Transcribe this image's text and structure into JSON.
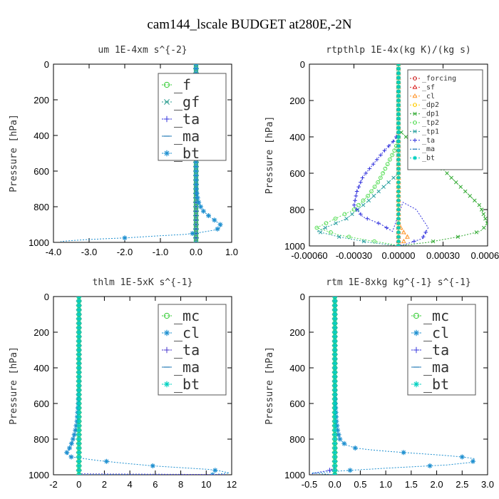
{
  "figure_title": "cam144_lscale  BUDGET at280E,-2N",
  "chart_data": [
    {
      "type": "line",
      "title": "um  1E-4xm s^{-2}",
      "ylabel": "Pressure [hPa]",
      "xlim": [
        -4.0,
        1.0
      ],
      "ylim": [
        1000,
        0
      ],
      "xticks": [
        -4.0,
        -3.0,
        -2.0,
        -1.0,
        0.0,
        1.0
      ],
      "xtick_labels": [
        "-4.0",
        "-3.0",
        "-2.0",
        "-1.0",
        "0.0",
        "1.0"
      ],
      "yticks": [
        0,
        200,
        400,
        600,
        800,
        1000
      ],
      "ytick_labels": [
        "0",
        "200",
        "400",
        "600",
        "800",
        "1000"
      ],
      "legend_size": "large",
      "series": [
        {
          "name": "_f",
          "color": "#33cc33",
          "marker": "circle",
          "x": [
            0,
            0
          ],
          "y": [
            0,
            1000
          ]
        },
        {
          "name": "_gf",
          "color": "#2a9d8f",
          "marker": "x",
          "x": [
            0,
            0
          ],
          "y": [
            0,
            1000
          ]
        },
        {
          "name": "_ta",
          "color": "#3333dd",
          "marker": "plus",
          "x": [
            0,
            0,
            0,
            0
          ],
          "y": [
            0,
            600,
            900,
            1000
          ]
        },
        {
          "name": "_ma",
          "color": "#1f77b4",
          "marker": "dash",
          "x": [
            0,
            0
          ],
          "y": [
            0,
            1000
          ]
        },
        {
          "name": "_bt",
          "color": "#1f90d0",
          "marker": "star",
          "x": [
            0,
            0,
            0,
            0.01,
            0.03,
            0.08,
            0.18,
            0.35,
            0.55,
            0.68,
            0.7,
            0.55,
            0.1,
            -0.3,
            -1.2,
            -2.0,
            -2.6,
            -3.1,
            -3.5,
            -3.8
          ],
          "y": [
            0,
            300,
            600,
            700,
            740,
            780,
            820,
            850,
            880,
            900,
            915,
            930,
            945,
            955,
            965,
            975,
            980,
            985,
            990,
            995
          ]
        }
      ]
    },
    {
      "type": "line",
      "title": "rtpthlp  1E-4x(kg K)/(kg s)",
      "ylabel": "Pressure [hPa]",
      "xlim": [
        -0.0006,
        0.0006
      ],
      "ylim": [
        1000,
        0
      ],
      "xticks": [
        -0.0006,
        -0.0003,
        0.0,
        0.0003,
        0.0006
      ],
      "xtick_labels": [
        "-0.00060",
        "-0.00030",
        "0.00000",
        "0.00030",
        "0.00060"
      ],
      "yticks": [
        0,
        200,
        400,
        600,
        800,
        1000
      ],
      "ytick_labels": [
        "0",
        "200",
        "400",
        "600",
        "800",
        "1000"
      ],
      "legend_size": "small",
      "series": [
        {
          "name": "_forcing",
          "color": "#cc2222",
          "marker": "circle",
          "x": [
            0,
            0
          ],
          "y": [
            0,
            1000
          ]
        },
        {
          "name": "_sf",
          "color": "#dd3333",
          "marker": "tri",
          "x": [
            0,
            0
          ],
          "y": [
            0,
            1000
          ]
        },
        {
          "name": "_cl",
          "color": "#ff9933",
          "marker": "tri",
          "x": [
            0,
            0,
            3e-05,
            6e-05,
            3e-05,
            0
          ],
          "y": [
            0,
            880,
            920,
            950,
            980,
            1000
          ]
        },
        {
          "name": "_dp2",
          "color": "#ffcc00",
          "marker": "circle",
          "x": [
            0,
            0
          ],
          "y": [
            0,
            1000
          ]
        },
        {
          "name": "_dp1",
          "color": "#33aa33",
          "marker": "x",
          "x": [
            0,
            0,
            5e-05,
            0.00012,
            0.0002,
            0.00028,
            0.00035,
            0.00045,
            0.00055,
            0.0006,
            0.00055,
            0.0004,
            0.0002,
            0
          ],
          "y": [
            0,
            360,
            400,
            450,
            500,
            560,
            620,
            700,
            780,
            880,
            920,
            950,
            980,
            1000
          ]
        },
        {
          "name": "_tp2",
          "color": "#55dd55",
          "marker": "circle",
          "x": [
            0,
            0,
            -3e-05,
            -8e-05,
            -0.00013,
            -0.0002,
            -0.0003,
            -0.00045,
            -0.00055,
            -0.0004,
            -0.0002,
            -5e-05,
            0
          ],
          "y": [
            0,
            420,
            480,
            560,
            640,
            720,
            800,
            860,
            900,
            940,
            970,
            990,
            1000
          ]
        },
        {
          "name": "_tp1",
          "color": "#2aa0a0",
          "marker": "x",
          "x": [
            0,
            0,
            -0.0002,
            -0.00035,
            -0.00055,
            -0.0004,
            -0.0002,
            0
          ],
          "y": [
            0,
            600,
            750,
            850,
            920,
            950,
            980,
            1000
          ]
        },
        {
          "name": "_ta",
          "color": "#3333dd",
          "marker": "plus",
          "x": [
            0,
            0,
            -3e-05,
            -0.0001,
            -0.00018,
            -0.00024,
            -0.00028,
            -0.0003,
            -0.00024,
            -0.00012,
            -4e-05,
            3e-05,
            0.00012,
            0.0002,
            0.00016,
            5e-05,
            0
          ],
          "y": [
            0,
            380,
            420,
            480,
            560,
            620,
            700,
            780,
            840,
            880,
            920,
            760,
            800,
            900,
            960,
            990,
            1000
          ]
        },
        {
          "name": "_ma",
          "color": "#1f77b4",
          "marker": "dash",
          "x": [
            0,
            0
          ],
          "y": [
            0,
            1000
          ]
        },
        {
          "name": "_bt",
          "color": "#00d0c0",
          "marker": "star",
          "x": [
            0,
            0
          ],
          "y": [
            0,
            1000
          ]
        }
      ]
    },
    {
      "type": "line",
      "title": "thlm  1E-5xK s^{-1}",
      "ylabel": "Pressure [hPa]",
      "xlim": [
        -2,
        12
      ],
      "ylim": [
        1000,
        0
      ],
      "xticks": [
        -2,
        0,
        2,
        4,
        6,
        8,
        10,
        12
      ],
      "xtick_labels": [
        "-2",
        "0",
        "2",
        "4",
        "6",
        "8",
        "10",
        "12"
      ],
      "yticks": [
        0,
        200,
        400,
        600,
        800,
        1000
      ],
      "ytick_labels": [
        "0",
        "200",
        "400",
        "600",
        "800",
        "1000"
      ],
      "legend_size": "large",
      "series": [
        {
          "name": "_mc",
          "color": "#33cc33",
          "marker": "circle",
          "x": [
            0,
            0
          ],
          "y": [
            0,
            1000
          ]
        },
        {
          "name": "_cl",
          "color": "#1f90d0",
          "marker": "star",
          "x": [
            0,
            0,
            -0.05,
            -0.15,
            -0.3,
            -0.55,
            -0.8,
            -1.0,
            -0.6,
            1.5,
            3.5,
            5.8,
            8.0,
            10.2,
            11.2,
            11.8,
            10.5,
            0
          ],
          "y": [
            0,
            500,
            600,
            700,
            760,
            820,
            860,
            880,
            900,
            920,
            935,
            950,
            960,
            970,
            980,
            990,
            1000,
            1000
          ]
        },
        {
          "name": "_ta",
          "color": "#4433cc",
          "marker": "plus",
          "x": [
            0,
            0,
            3,
            6,
            9,
            11.5
          ],
          "y": [
            0,
            995,
            996,
            997,
            998,
            999
          ]
        },
        {
          "name": "_ma",
          "color": "#1f77b4",
          "marker": "dash",
          "x": [
            0,
            0
          ],
          "y": [
            0,
            1000
          ]
        },
        {
          "name": "_bt",
          "color": "#00d0c0",
          "marker": "star",
          "x": [
            0,
            0
          ],
          "y": [
            0,
            1000
          ]
        }
      ]
    },
    {
      "type": "line",
      "title": "rtm  1E-8xkg kg^{-1} s^{-1}",
      "ylabel": "Pressure [hPa]",
      "xlim": [
        -0.5,
        3.0
      ],
      "ylim": [
        1000,
        0
      ],
      "xticks": [
        -0.5,
        0.0,
        0.5,
        1.0,
        1.5,
        2.0,
        2.5,
        3.0
      ],
      "xtick_labels": [
        "-0.5",
        "0.0",
        "0.5",
        "1.0",
        "1.5",
        "2.0",
        "2.5",
        "3.0"
      ],
      "yticks": [
        0,
        200,
        400,
        600,
        800,
        1000
      ],
      "ytick_labels": [
        "0",
        "200",
        "400",
        "600",
        "800",
        "1000"
      ],
      "legend_size": "large",
      "series": [
        {
          "name": "_mc",
          "color": "#33cc33",
          "marker": "circle",
          "x": [
            0,
            0
          ],
          "y": [
            0,
            1000
          ]
        },
        {
          "name": "_cl",
          "color": "#1f90d0",
          "marker": "star",
          "x": [
            0,
            0,
            0.01,
            0.03,
            0.06,
            0.1,
            0.2,
            0.4,
            0.7,
            1.1,
            1.6,
            2.1,
            2.5,
            2.75,
            2.7,
            2.2,
            1.2,
            0.3,
            -0.2,
            -0.45,
            0
          ],
          "y": [
            0,
            500,
            600,
            700,
            760,
            800,
            830,
            850,
            860,
            870,
            880,
            890,
            900,
            910,
            930,
            945,
            960,
            975,
            985,
            990,
            1000
          ]
        },
        {
          "name": "_ta",
          "color": "#3333dd",
          "marker": "plus",
          "x": [
            0,
            0,
            -0.1,
            -0.3,
            -0.45
          ],
          "y": [
            0,
            960,
            975,
            985,
            995
          ]
        },
        {
          "name": "_ma",
          "color": "#1f77b4",
          "marker": "dash",
          "x": [
            0,
            0
          ],
          "y": [
            0,
            1000
          ]
        },
        {
          "name": "_bt",
          "color": "#00d0c0",
          "marker": "star",
          "x": [
            0,
            0
          ],
          "y": [
            0,
            1000
          ]
        }
      ]
    }
  ]
}
